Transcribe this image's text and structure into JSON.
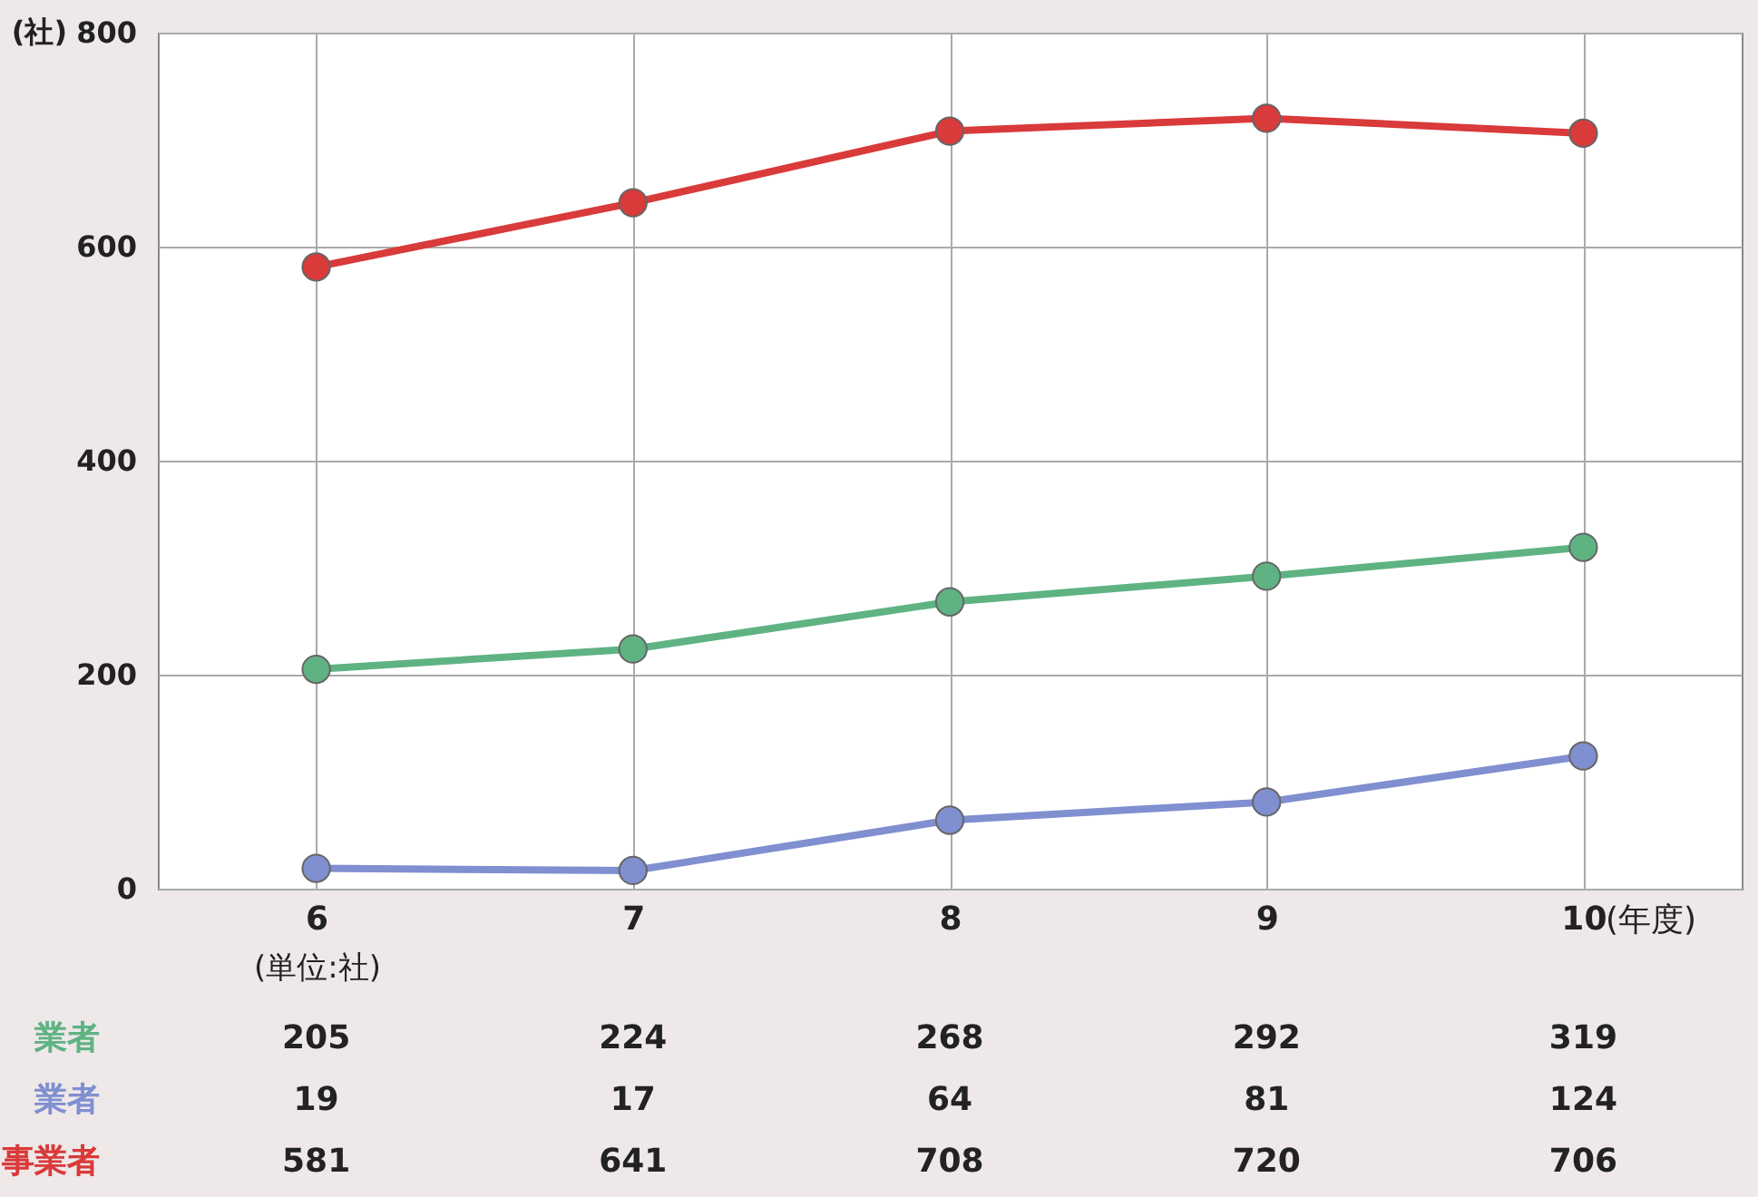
{
  "chart_data": {
    "type": "line",
    "ylabel": "(社)",
    "xlabel": "(年度)",
    "annotations": [
      "(単位:社)"
    ],
    "categories": [
      "6",
      "7",
      "8",
      "9",
      "10"
    ],
    "series": [
      {
        "name": "業者",
        "color": "#5fb383",
        "values": [
          205,
          224,
          268,
          292,
          319
        ]
      },
      {
        "name": "業者",
        "color": "#7f8fd0",
        "values": [
          19,
          17,
          64,
          81,
          124
        ]
      },
      {
        "name": "事業者",
        "color": "#d93a3a",
        "values": [
          581,
          641,
          708,
          720,
          706
        ]
      }
    ],
    "ylim": [
      0,
      800
    ],
    "yticks": [
      0,
      200,
      400,
      600,
      800
    ],
    "grid": true,
    "legend": false,
    "marker": "circle",
    "line_style": "solid",
    "data_labels": true
  }
}
